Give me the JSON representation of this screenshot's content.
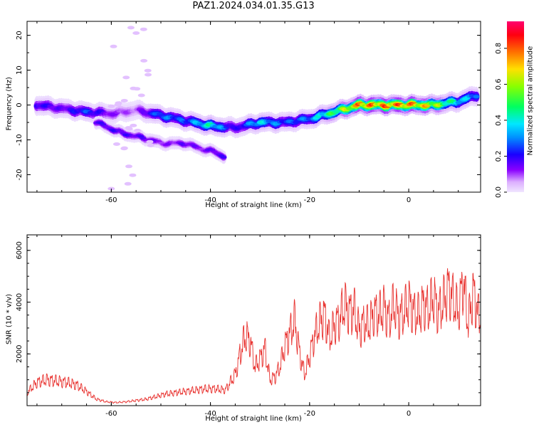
{
  "title": "PAZ1.2024.034.01.35.G13",
  "chart_data": [
    {
      "type": "heatmap",
      "title": "PAZ1.2024.034.01.35.G13",
      "xlabel": "Height of straight line (km)",
      "ylabel": "Frequency (Hz)",
      "xlim": [
        -77,
        14.5
      ],
      "ylim": [
        -25,
        24
      ],
      "x_ticks": [
        -60,
        -40,
        -20,
        0
      ],
      "x_tick_labels": [
        "-60",
        "-40",
        "-20",
        "0"
      ],
      "y_ticks": [
        -20,
        -10,
        0,
        10,
        20
      ],
      "y_tick_labels": [
        "-20",
        "-10",
        "0",
        "10",
        "20"
      ],
      "colorbar": {
        "label": "Normalized spectral amplitude",
        "range": [
          0,
          0.95
        ],
        "ticks": [
          0.0,
          0.2,
          0.4,
          0.6,
          0.8
        ],
        "tick_labels": [
          "0.0",
          "0.2",
          "0.4",
          "0.6",
          "0.8"
        ],
        "colormap": "gist_rainbow_r"
      },
      "ridge": {
        "x": [
          -75,
          -70,
          -65,
          -60,
          -55,
          -50,
          -45,
          -40,
          -35,
          -30,
          -25,
          -20,
          -15,
          -10,
          -5,
          0,
          5,
          10,
          14
        ],
        "frequency": [
          0,
          -1,
          -2,
          -2.5,
          -1.5,
          -3,
          -4.5,
          -6,
          -6.5,
          -5,
          -5,
          -4,
          -2,
          0,
          0,
          0,
          0,
          1,
          3
        ],
        "amplitude": [
          0.25,
          0.18,
          0.3,
          0.15,
          0.1,
          0.35,
          0.3,
          0.5,
          0.2,
          0.45,
          0.3,
          0.35,
          0.6,
          0.88,
          0.9,
          0.9,
          0.75,
          0.45,
          0.35
        ]
      },
      "secondary_branch": {
        "x": [
          -63,
          -58,
          -55,
          -52,
          -50,
          -47,
          -45,
          -42,
          -39,
          -37
        ],
        "frequency": [
          -5,
          -8,
          -9,
          -10,
          -11,
          -11,
          -11,
          -12.5,
          -13.5,
          -15
        ],
        "amplitude": [
          0.2,
          0.22,
          0.2,
          0.18,
          0.15,
          0.15,
          0.2,
          0.15,
          0.2,
          0.2
        ]
      }
    },
    {
      "type": "line",
      "xlabel": "Height of straight line (km)",
      "ylabel": "SNR (10 * v/v)",
      "xlim": [
        -77,
        14.5
      ],
      "ylim": [
        0,
        6600
      ],
      "x_ticks": [
        -60,
        -40,
        -20,
        0
      ],
      "x_tick_labels": [
        "-60",
        "-40",
        "-20",
        "0"
      ],
      "y_ticks": [
        2000,
        4000,
        6000
      ],
      "y_tick_labels": [
        "2000",
        "4000",
        "6000"
      ],
      "color": "#e8312e",
      "series": [
        {
          "x": [
            -77,
            -75,
            -73,
            -71,
            -69,
            -67,
            -65,
            -63,
            -61,
            -59,
            -57,
            -55,
            -53,
            -51,
            -49,
            -47,
            -45,
            -43,
            -41,
            -39,
            -37,
            -35,
            -34,
            -33,
            -32,
            -31,
            -30,
            -29,
            -28,
            -27,
            -26,
            -25,
            -24,
            -23,
            -22,
            -21,
            -20,
            -19,
            -18,
            -17,
            -16,
            -15,
            -14,
            -13,
            -12,
            -11,
            -10,
            -9,
            -8,
            -7,
            -6,
            -5,
            -4,
            -3,
            -2,
            -1,
            0,
            1,
            2,
            3,
            4,
            5,
            6,
            7,
            8,
            9,
            10,
            11,
            12,
            13,
            14
          ],
          "y": [
            500,
            900,
            1000,
            950,
            900,
            800,
            550,
            250,
            150,
            120,
            150,
            200,
            250,
            350,
            450,
            500,
            550,
            600,
            650,
            650,
            600,
            1200,
            2000,
            2700,
            2500,
            1500,
            1800,
            2200,
            1000,
            1100,
            1500,
            2300,
            2800,
            3300,
            2000,
            1200,
            1900,
            2700,
            3200,
            3500,
            2600,
            3100,
            3300,
            3900,
            3600,
            3700,
            2900,
            3200,
            3100,
            3600,
            3500,
            3800,
            3300,
            3900,
            3400,
            3600,
            4000,
            3600,
            3500,
            3900,
            3700,
            4200,
            3600,
            4000,
            4500,
            4100,
            3600,
            4800,
            3200,
            4400,
            3500
          ]
        }
      ]
    }
  ]
}
